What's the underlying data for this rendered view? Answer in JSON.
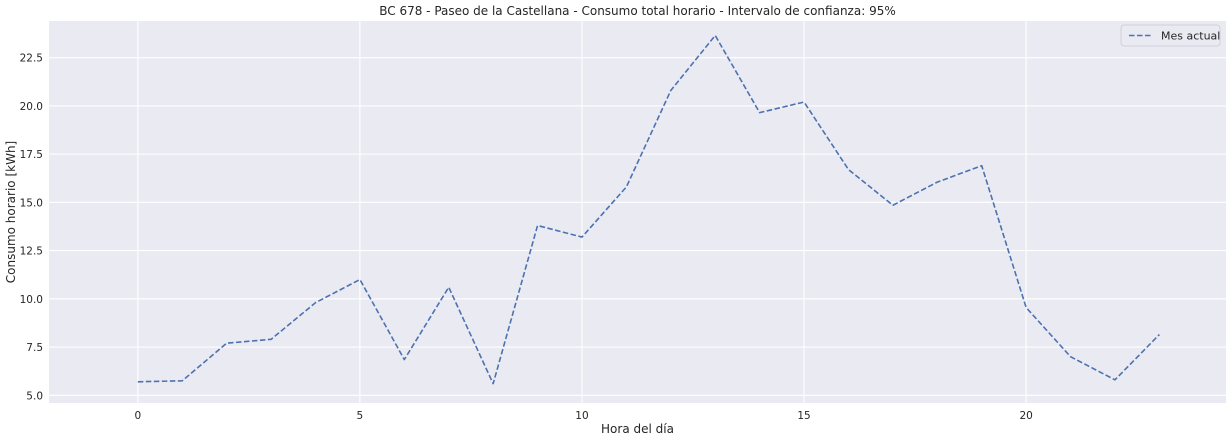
{
  "chart_data": {
    "type": "line",
    "title": "BC 678 - Paseo de la Castellana - Consumo total horario - Intervalo de confianza: 95%",
    "xlabel": "Hora del día",
    "ylabel": "Consumo horario [kWh]",
    "xlim": [
      -2,
      24.5
    ],
    "ylim": [
      4.6,
      24.4
    ],
    "xticks": [
      0,
      5,
      10,
      15,
      20
    ],
    "xtick_labels": [
      "0",
      "5",
      "10",
      "15",
      "20"
    ],
    "yticks": [
      5.0,
      7.5,
      10.0,
      12.5,
      15.0,
      17.5,
      20.0,
      22.5
    ],
    "ytick_labels": [
      "5.0",
      "7.5",
      "10.0",
      "12.5",
      "15.0",
      "17.5",
      "20.0",
      "22.5"
    ],
    "grid": true,
    "legend_position": "top-right",
    "series": [
      {
        "name": "Mes actual",
        "color": "#4c72b0",
        "line_style": "dashed",
        "x": [
          0,
          1,
          2,
          3,
          4,
          5,
          6,
          7,
          8,
          9,
          10,
          11,
          12,
          13,
          14,
          15,
          16,
          17,
          18,
          19,
          20,
          21,
          22,
          23
        ],
        "values": [
          5.7,
          5.75,
          7.7,
          7.9,
          9.8,
          11.0,
          6.85,
          10.6,
          5.6,
          13.8,
          13.2,
          15.8,
          20.8,
          23.65,
          19.65,
          20.2,
          16.7,
          14.85,
          16.05,
          16.9,
          9.55,
          7.0,
          5.8,
          8.15
        ]
      }
    ],
    "colors": {
      "plot_background": "#eaeaf2",
      "grid": "#ffffff",
      "line": "#4c72b0"
    }
  }
}
